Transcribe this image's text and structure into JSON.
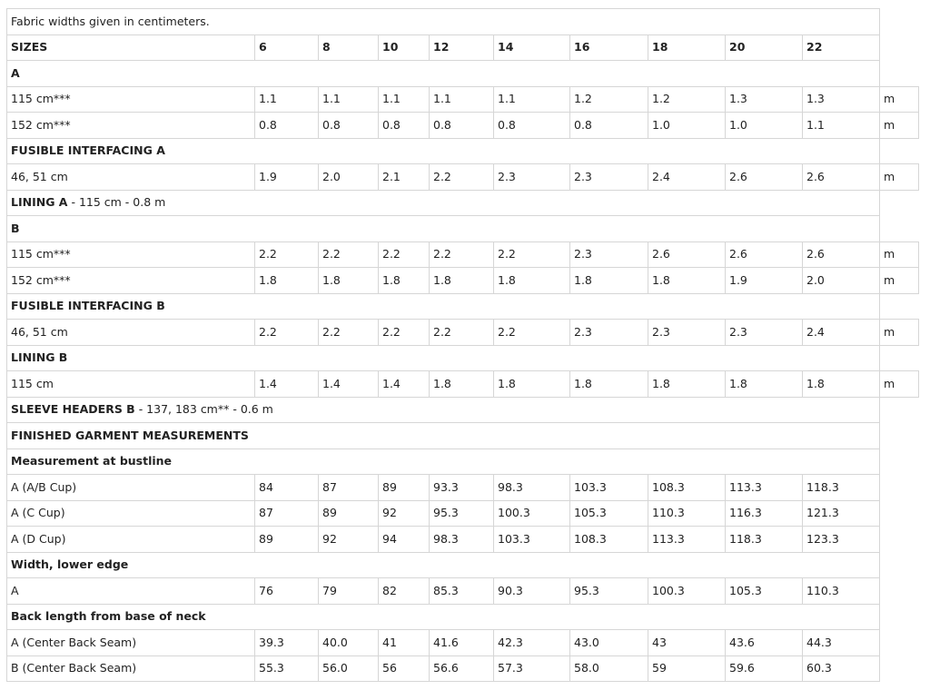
{
  "note": "Fabric widths given in centimeters.",
  "sizes_label": "SIZES",
  "sizes": [
    "6",
    "8",
    "10",
    "12",
    "14",
    "16",
    "18",
    "20",
    "22"
  ],
  "unit": "m",
  "view_a": {
    "label": "A",
    "rows": [
      {
        "label": "115 cm***",
        "values": [
          "1.1",
          "1.1",
          "1.1",
          "1.1",
          "1.1",
          "1.2",
          "1.2",
          "1.3",
          "1.3"
        ]
      },
      {
        "label": "152 cm***",
        "values": [
          "0.8",
          "0.8",
          "0.8",
          "0.8",
          "0.8",
          "0.8",
          "1.0",
          "1.0",
          "1.1"
        ]
      }
    ]
  },
  "fusible_a": {
    "label": "FUSIBLE INTERFACING A",
    "rows": [
      {
        "label": "46, 51 cm",
        "values": [
          "1.9",
          "2.0",
          "2.1",
          "2.2",
          "2.3",
          "2.3",
          "2.4",
          "2.6",
          "2.6"
        ]
      }
    ]
  },
  "lining_a": {
    "label": "LINING A",
    "detail": " - 115 cm - 0.8 m"
  },
  "view_b": {
    "label": "B",
    "rows": [
      {
        "label": "115 cm***",
        "values": [
          "2.2",
          "2.2",
          "2.2",
          "2.2",
          "2.2",
          "2.3",
          "2.6",
          "2.6",
          "2.6"
        ]
      },
      {
        "label": "152 cm***",
        "values": [
          "1.8",
          "1.8",
          "1.8",
          "1.8",
          "1.8",
          "1.8",
          "1.8",
          "1.9",
          "2.0"
        ]
      }
    ]
  },
  "fusible_b": {
    "label": "FUSIBLE INTERFACING B",
    "rows": [
      {
        "label": "46, 51 cm",
        "values": [
          "2.2",
          "2.2",
          "2.2",
          "2.2",
          "2.2",
          "2.3",
          "2.3",
          "2.3",
          "2.4"
        ]
      }
    ]
  },
  "lining_b": {
    "label": "LINING B",
    "rows": [
      {
        "label": "115 cm",
        "values": [
          "1.4",
          "1.4",
          "1.4",
          "1.8",
          "1.8",
          "1.8",
          "1.8",
          "1.8",
          "1.8"
        ]
      }
    ]
  },
  "sleeve_headers_b": {
    "label": "SLEEVE HEADERS B",
    "detail": " - 137, 183 cm** - 0.6 m"
  },
  "finished_label": "FINISHED GARMENT MEASUREMENTS",
  "bustline": {
    "label": "Measurement at bustline",
    "rows": [
      {
        "label": "A (A/B Cup)",
        "values": [
          "84",
          "87",
          "89",
          "93.3",
          "98.3",
          "103.3",
          "108.3",
          "113.3",
          "118.3"
        ]
      },
      {
        "label": "A (C Cup)",
        "values": [
          "87",
          "89",
          "92",
          "95.3",
          "100.3",
          "105.3",
          "110.3",
          "116.3",
          "121.3"
        ]
      },
      {
        "label": "A (D Cup)",
        "values": [
          "89",
          "92",
          "94",
          "98.3",
          "103.3",
          "108.3",
          "113.3",
          "118.3",
          "123.3"
        ]
      }
    ]
  },
  "lower_edge": {
    "label": "Width, lower edge",
    "rows": [
      {
        "label": "A",
        "values": [
          "76",
          "79",
          "82",
          "85.3",
          "90.3",
          "95.3",
          "100.3",
          "105.3",
          "110.3"
        ]
      }
    ]
  },
  "back_length": {
    "label": "Back length from base of neck",
    "rows": [
      {
        "label": "A (Center Back Seam)",
        "values": [
          "39.3",
          "40.0",
          "41",
          "41.6",
          "42.3",
          "43.0",
          "43",
          "43.6",
          "44.3"
        ]
      },
      {
        "label": "B (Center Back Seam)",
        "values": [
          "55.3",
          "56.0",
          "56",
          "56.6",
          "57.3",
          "58.0",
          "59",
          "59.6",
          "60.3"
        ]
      }
    ]
  }
}
